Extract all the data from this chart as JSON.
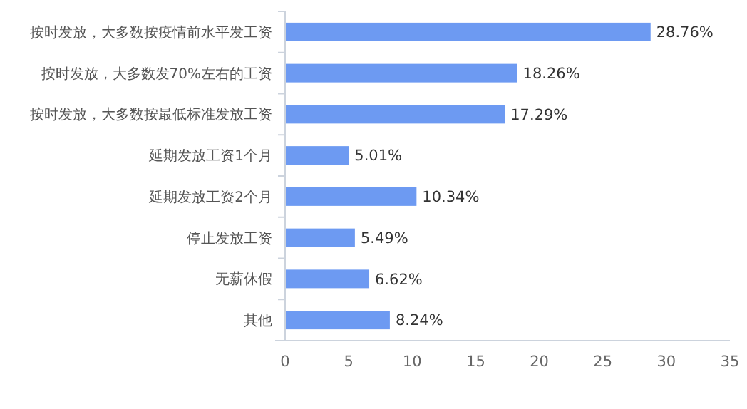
{
  "chart_data": {
    "type": "bar",
    "orientation": "horizontal",
    "categories": [
      "按时发放，大多数按疫情前水平发工资",
      "按时发放，大多数发70%左右的工资",
      "按时发放，大多数按最低标准发放工资",
      "延期发放工资1个月",
      "延期发放工资2个月",
      "停止发放工资",
      "无薪休假",
      "其他"
    ],
    "values": [
      28.76,
      18.26,
      17.29,
      5.01,
      10.34,
      5.49,
      6.62,
      8.24
    ],
    "value_labels": [
      "28.76%",
      "18.26%",
      "17.29%",
      "5.01%",
      "10.34%",
      "5.49%",
      "6.62%",
      "8.24%"
    ],
    "color": "#6d9af2",
    "xlim": [
      0,
      35
    ],
    "xticks": [
      0,
      5,
      10,
      15,
      20,
      25,
      30,
      35
    ],
    "grid": false
  }
}
